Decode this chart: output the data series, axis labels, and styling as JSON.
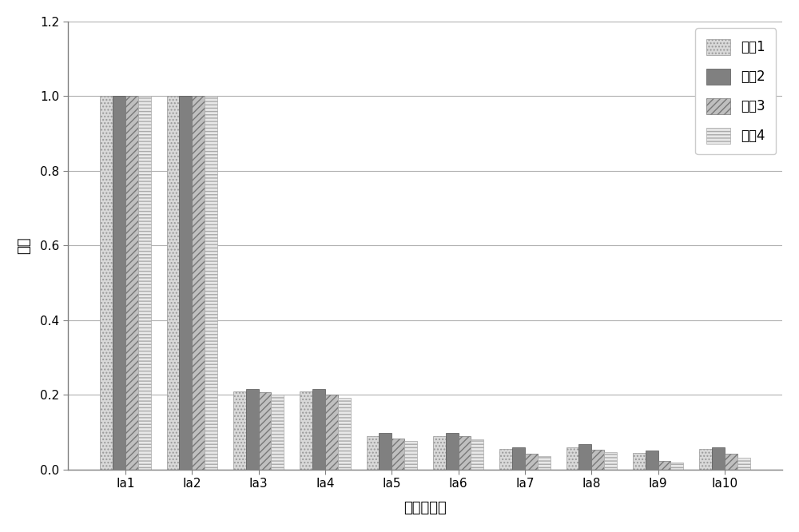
{
  "categories": [
    "Ia1",
    "Ia2",
    "Ia3",
    "Ia4",
    "Ia5",
    "Ia6",
    "Ia7",
    "Ia8",
    "Ia9",
    "Ia10"
  ],
  "series": [
    {
      "name": "系列1",
      "values": [
        1.0,
        1.0,
        0.21,
        0.21,
        0.09,
        0.09,
        0.055,
        0.06,
        0.045,
        0.055
      ],
      "color": "#d9d9d9",
      "hatch": "....",
      "edgecolor": "#999999"
    },
    {
      "name": "系列2",
      "values": [
        1.0,
        1.0,
        0.215,
        0.215,
        0.098,
        0.098,
        0.06,
        0.068,
        0.05,
        0.06
      ],
      "color": "#808080",
      "hatch": "",
      "edgecolor": "#555555"
    },
    {
      "name": "系列3",
      "values": [
        1.0,
        1.0,
        0.207,
        0.2,
        0.083,
        0.09,
        0.043,
        0.053,
        0.023,
        0.043
      ],
      "color": "#bfbfbf",
      "hatch": "////",
      "edgecolor": "#777777"
    },
    {
      "name": "系列4",
      "values": [
        1.0,
        1.0,
        0.2,
        0.193,
        0.076,
        0.082,
        0.036,
        0.046,
        0.018,
        0.032
      ],
      "color": "#e8e8e8",
      "hatch": "----",
      "edgecolor": "#aaaaaa"
    }
  ],
  "xlabel": "测量处节点",
  "ylabel": "能量",
  "ylim": [
    0,
    1.2
  ],
  "yticks": [
    0,
    0.2,
    0.4,
    0.6,
    0.8,
    1.0,
    1.2
  ],
  "bar_width": 0.19,
  "legend_loc": "upper right",
  "grid_color": "#b0b0b0",
  "background_color": "#ffffff",
  "axis_color": "#808080",
  "tick_fontsize": 11,
  "label_fontsize": 13
}
